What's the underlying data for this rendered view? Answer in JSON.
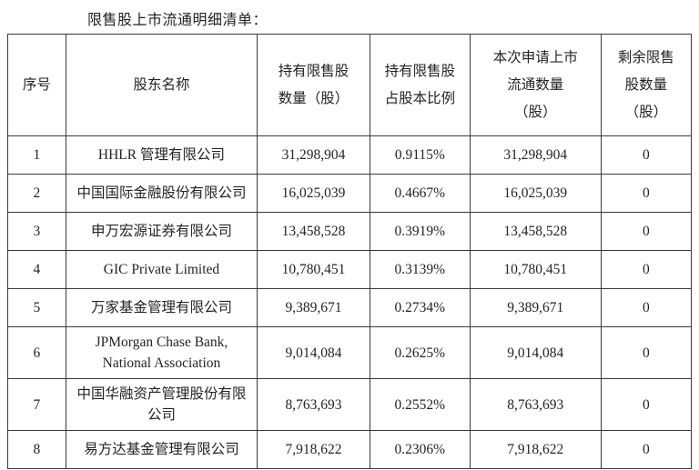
{
  "page": {
    "title": "限售股上市流通明细清单："
  },
  "table": {
    "headers": [
      {
        "id": "index",
        "lines": [
          "序号"
        ]
      },
      {
        "id": "name",
        "lines": [
          "股东名称"
        ]
      },
      {
        "id": "held",
        "lines": [
          "持有限售股",
          "数量（股）"
        ]
      },
      {
        "id": "ratio",
        "lines": [
          "持有限售股",
          "占股本比例"
        ]
      },
      {
        "id": "listed",
        "lines": [
          "本次申请上市",
          "流通数量",
          "（股）"
        ]
      },
      {
        "id": "remaining",
        "lines": [
          "剩余限售",
          "股数量",
          "（股）"
        ]
      }
    ],
    "rows": [
      {
        "index": "1",
        "name": "HHLR 管理有限公司",
        "held": "31,298,904",
        "ratio": "0.9115%",
        "listed": "31,298,904",
        "remaining": "0"
      },
      {
        "index": "2",
        "name": "中国国际金融股份有限公司",
        "held": "16,025,039",
        "ratio": "0.4667%",
        "listed": "16,025,039",
        "remaining": "0"
      },
      {
        "index": "3",
        "name": "申万宏源证券有限公司",
        "held": "13,458,528",
        "ratio": "0.3919%",
        "listed": "13,458,528",
        "remaining": "0"
      },
      {
        "index": "4",
        "name": "GIC Private Limited",
        "held": "10,780,451",
        "ratio": "0.3139%",
        "listed": "10,780,451",
        "remaining": "0"
      },
      {
        "index": "5",
        "name": "万家基金管理有限公司",
        "held": "9,389,671",
        "ratio": "0.2734%",
        "listed": "9,389,671",
        "remaining": "0"
      },
      {
        "index": "6",
        "name": "JPMorgan Chase Bank, National Association",
        "held": "9,014,084",
        "ratio": "0.2625%",
        "listed": "9,014,084",
        "remaining": "0"
      },
      {
        "index": "7",
        "name": "中国华融资产管理股份有限公司",
        "held": "8,763,693",
        "ratio": "0.2552%",
        "listed": "8,763,693",
        "remaining": "0"
      },
      {
        "index": "8",
        "name": "易方达基金管理有限公司",
        "held": "7,918,622",
        "ratio": "0.2306%",
        "listed": "7,918,622",
        "remaining": "0"
      }
    ]
  }
}
